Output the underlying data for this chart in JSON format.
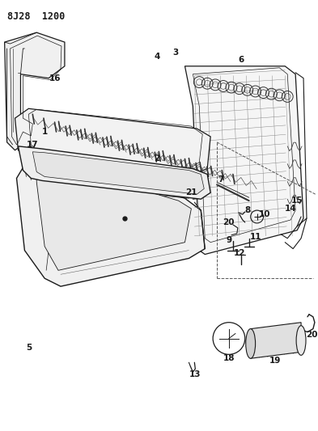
{
  "title": "8J28  1200",
  "bg_color": "#ffffff",
  "line_color": "#1a1a1a",
  "fig_width": 3.93,
  "fig_height": 5.33,
  "dpi": 100
}
